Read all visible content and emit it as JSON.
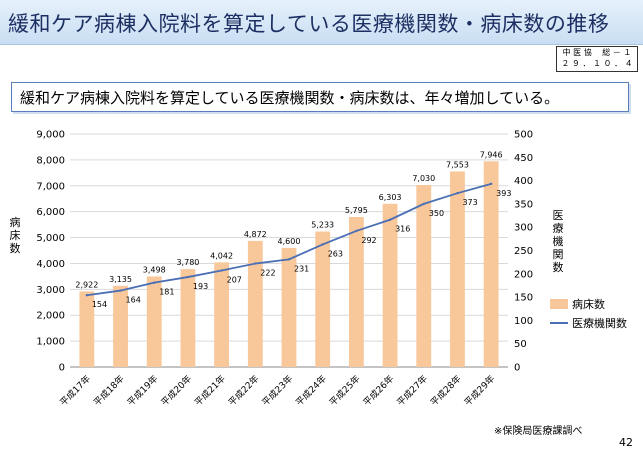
{
  "header": {
    "title": "緩和ケア病棟入院料を算定している医療機関数・病床数の推移",
    "ref_line1": "中 医 協　 総 － １",
    "ref_line2": "２ ９ ． １ ０ ． ４"
  },
  "banner": {
    "text": "緩和ケア病棟入院料を算定している医療機関数・病床数は、年々増加している。"
  },
  "footer": {
    "source": "※保険局医療課調べ",
    "page_number": "42"
  },
  "colors": {
    "bar": "#f8c79a",
    "line": "#4a6fb5",
    "title_bg": "#d8e7f7"
  },
  "chart_data": {
    "type": "bar",
    "categories": [
      "平成17年",
      "平成18年",
      "平成19年",
      "平成20年",
      "平成21年",
      "平成22年",
      "平成23年",
      "平成24年",
      "平成25年",
      "平成26年",
      "平成27年",
      "平成28年",
      "平成29年"
    ],
    "series": [
      {
        "name": "病床数",
        "type": "bar",
        "axis": "left",
        "values": [
          2922,
          3135,
          3498,
          3780,
          4042,
          4872,
          4600,
          5233,
          5795,
          6303,
          7030,
          7553,
          7946
        ],
        "labels": [
          "2,922",
          "3,135",
          "3,498",
          "3,780",
          "4,042",
          "4,872",
          "4,600",
          "5,233",
          "5,795",
          "6,303",
          "7,030",
          "7,553",
          "7,946"
        ]
      },
      {
        "name": "医療機関数",
        "type": "line",
        "axis": "right",
        "values": [
          154,
          164,
          181,
          193,
          207,
          222,
          231,
          263,
          292,
          316,
          350,
          373,
          393
        ]
      }
    ],
    "y_left": {
      "title": "病床数",
      "min": 0,
      "max": 9000,
      "step": 1000,
      "ticks": [
        "0",
        "1,000",
        "2,000",
        "3,000",
        "4,000",
        "5,000",
        "6,000",
        "7,000",
        "8,000",
        "9,000"
      ]
    },
    "y_right": {
      "title": "医療機関数",
      "min": 0,
      "max": 500,
      "step": 50,
      "ticks": [
        "0",
        "50",
        "100",
        "150",
        "200",
        "250",
        "300",
        "350",
        "400",
        "450",
        "500"
      ]
    },
    "legend_position": "right",
    "grid": true
  }
}
